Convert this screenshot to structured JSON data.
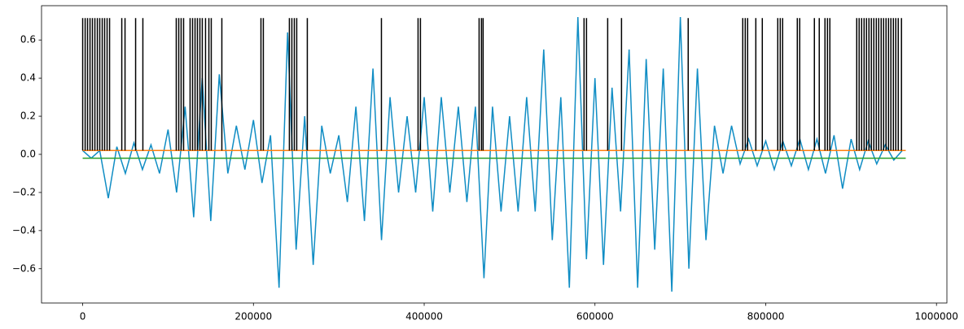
{
  "chart_data": {
    "type": "line",
    "xlim": [
      -48200,
      1012200
    ],
    "ylim": [
      -0.78,
      0.78
    ],
    "xticks": [
      0,
      200000,
      400000,
      600000,
      800000,
      1000000
    ],
    "yticks": [
      {
        "value": -0.6,
        "label": "−0.6"
      },
      {
        "value": -0.4,
        "label": "−0.4"
      },
      {
        "value": -0.2,
        "label": "−0.2"
      },
      {
        "value": 0,
        "label": "0.0"
      },
      0.2,
      0.4,
      0.6
    ],
    "grid": false,
    "series": [
      {
        "color": "#108dc4",
        "x": [
          0,
          10000,
          20000,
          30000,
          40000,
          50000,
          60000,
          70000,
          80000,
          90000,
          100000,
          110000,
          120000,
          130000,
          140000,
          150000,
          160000,
          170000,
          180000,
          190000,
          200000,
          210000,
          220000,
          230000,
          240000,
          250000,
          260000,
          270000,
          280000,
          290000,
          300000,
          310000,
          320000,
          330000,
          340000,
          350000,
          360000,
          370000,
          380000,
          390000,
          400000,
          410000,
          420000,
          430000,
          440000,
          450000,
          460000,
          470000,
          480000,
          490000,
          500000,
          510000,
          520000,
          530000,
          540000,
          550000,
          560000,
          570000,
          580000,
          590000,
          600000,
          610000,
          620000,
          630000,
          640000,
          650000,
          660000,
          670000,
          680000,
          690000,
          700000,
          710000,
          720000,
          730000,
          740000,
          750000,
          760000,
          770000,
          780000,
          790000,
          800000,
          810000,
          820000,
          830000,
          840000,
          850000,
          860000,
          870000,
          880000,
          890000,
          900000,
          910000,
          920000,
          930000,
          940000,
          950000,
          960000
        ],
        "values": [
          0.02,
          -0.02,
          0.02,
          -0.23,
          0.04,
          -0.1,
          0.06,
          -0.08,
          0.05,
          -0.1,
          0.13,
          -0.2,
          0.25,
          -0.33,
          0.4,
          -0.35,
          0.42,
          -0.1,
          0.15,
          -0.08,
          0.18,
          -0.15,
          0.1,
          -0.7,
          0.64,
          -0.5,
          0.2,
          -0.58,
          0.15,
          -0.1,
          0.1,
          -0.25,
          0.25,
          -0.35,
          0.45,
          -0.45,
          0.3,
          -0.2,
          0.2,
          -0.2,
          0.3,
          -0.3,
          0.3,
          -0.2,
          0.25,
          -0.25,
          0.25,
          -0.65,
          0.25,
          -0.3,
          0.2,
          -0.3,
          0.3,
          -0.3,
          0.55,
          -0.45,
          0.3,
          -0.7,
          0.72,
          -0.55,
          0.4,
          -0.58,
          0.35,
          -0.3,
          0.55,
          -0.7,
          0.5,
          -0.5,
          0.45,
          -0.72,
          0.72,
          -0.6,
          0.45,
          -0.45,
          0.15,
          -0.1,
          0.15,
          -0.05,
          0.08,
          -0.06,
          0.07,
          -0.08,
          0.07,
          -0.06,
          0.08,
          -0.08,
          0.08,
          -0.1,
          0.1,
          -0.18,
          0.08,
          -0.08,
          0.07,
          -0.05,
          0.05,
          -0.03,
          0.02
        ]
      },
      {
        "color": "#ff7f0e",
        "x": [
          0,
          964000
        ],
        "values": [
          0.02,
          0.02
        ]
      },
      {
        "color": "#2ca02c",
        "x": [
          0,
          964000
        ],
        "values": [
          -0.02,
          -0.02
        ]
      },
      {
        "kind": "vlines",
        "color": "#000000",
        "ymin": 0.02,
        "ymax": 0.715,
        "x": [
          0,
          2900,
          5700,
          8600,
          11400,
          14300,
          17200,
          20000,
          22900,
          25700,
          28600,
          31500,
          45800,
          49600,
          62000,
          70500,
          109600,
          112500,
          115300,
          118200,
          125800,
          128700,
          131600,
          134400,
          137300,
          140100,
          143900,
          147800,
          150600,
          163000,
          208800,
          211600,
          242100,
          245000,
          247900,
          250700,
          263100,
          349900,
          392800,
          395600,
          464300,
          467100,
          469000,
          587200,
          590100,
          614900,
          631100,
          709200,
          773100,
          776000,
          778800,
          788400,
          796000,
          814100,
          817000,
          819800,
          837000,
          839800,
          857000,
          862700,
          869400,
          872300,
          875100,
          906600,
          909400,
          912300,
          915200,
          918000,
          920900,
          923700,
          926600,
          929500,
          932300,
          935200,
          938000,
          940900,
          943800,
          946600,
          949500,
          952300,
          955200,
          959000
        ]
      }
    ]
  }
}
